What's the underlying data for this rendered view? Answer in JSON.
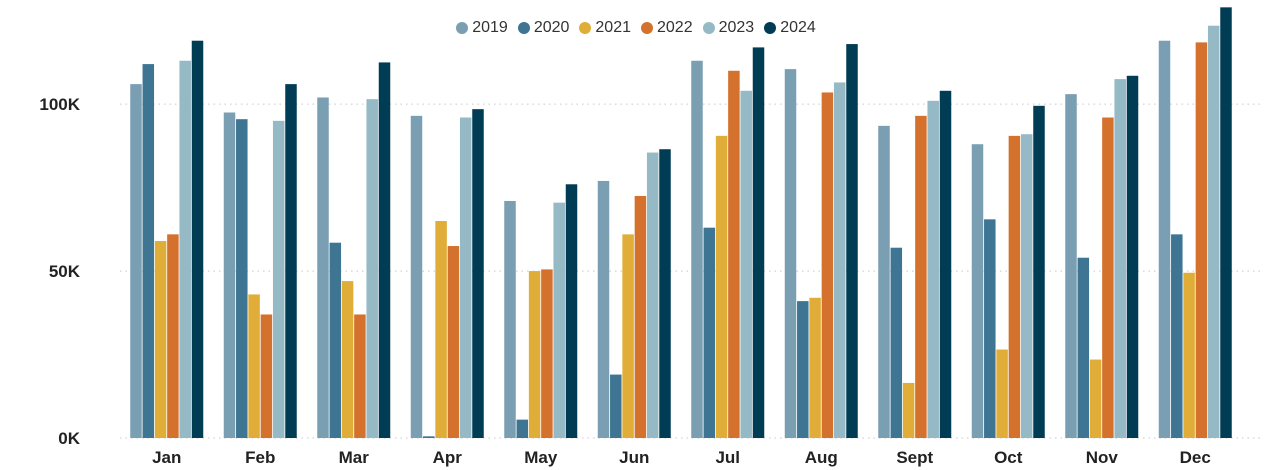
{
  "chart_data": {
    "type": "bar",
    "title": "",
    "xlabel": "",
    "ylabel": "",
    "categories": [
      "Jan",
      "Feb",
      "Mar",
      "Apr",
      "May",
      "Jun",
      "Jul",
      "Aug",
      "Sept",
      "Oct",
      "Nov",
      "Dec"
    ],
    "ylim": [
      0,
      130000
    ],
    "yticks": [
      {
        "value": 0,
        "label": "0K"
      },
      {
        "value": 50000,
        "label": "50K"
      },
      {
        "value": 100000,
        "label": "100K"
      }
    ],
    "grid": true,
    "legend_position": "top-center",
    "series": [
      {
        "name": "2019",
        "color": "#7a9fb2",
        "values": [
          106000,
          97500,
          102000,
          96500,
          71000,
          77000,
          113000,
          110500,
          93500,
          88000,
          103000,
          119000
        ]
      },
      {
        "name": "2020",
        "color": "#3e7592",
        "values": [
          112000,
          95500,
          58500,
          500,
          5500,
          19000,
          63000,
          41000,
          57000,
          65500,
          54000,
          61000
        ]
      },
      {
        "name": "2021",
        "color": "#e0ae38",
        "values": [
          59000,
          43000,
          47000,
          65000,
          50000,
          61000,
          90500,
          42000,
          16500,
          26500,
          23500,
          49500
        ]
      },
      {
        "name": "2022",
        "color": "#d3712d",
        "values": [
          61000,
          37000,
          37000,
          57500,
          50500,
          72500,
          110000,
          103500,
          96500,
          90500,
          96000,
          118500
        ]
      },
      {
        "name": "2023",
        "color": "#95b9c5",
        "values": [
          113000,
          95000,
          101500,
          96000,
          70500,
          85500,
          104000,
          106500,
          101000,
          91000,
          107500,
          123500
        ]
      },
      {
        "name": "2024",
        "color": "#003d55",
        "values": [
          119000,
          106000,
          112500,
          98500,
          76000,
          86500,
          117000,
          118000,
          104000,
          99500,
          108500,
          129000
        ]
      }
    ]
  }
}
